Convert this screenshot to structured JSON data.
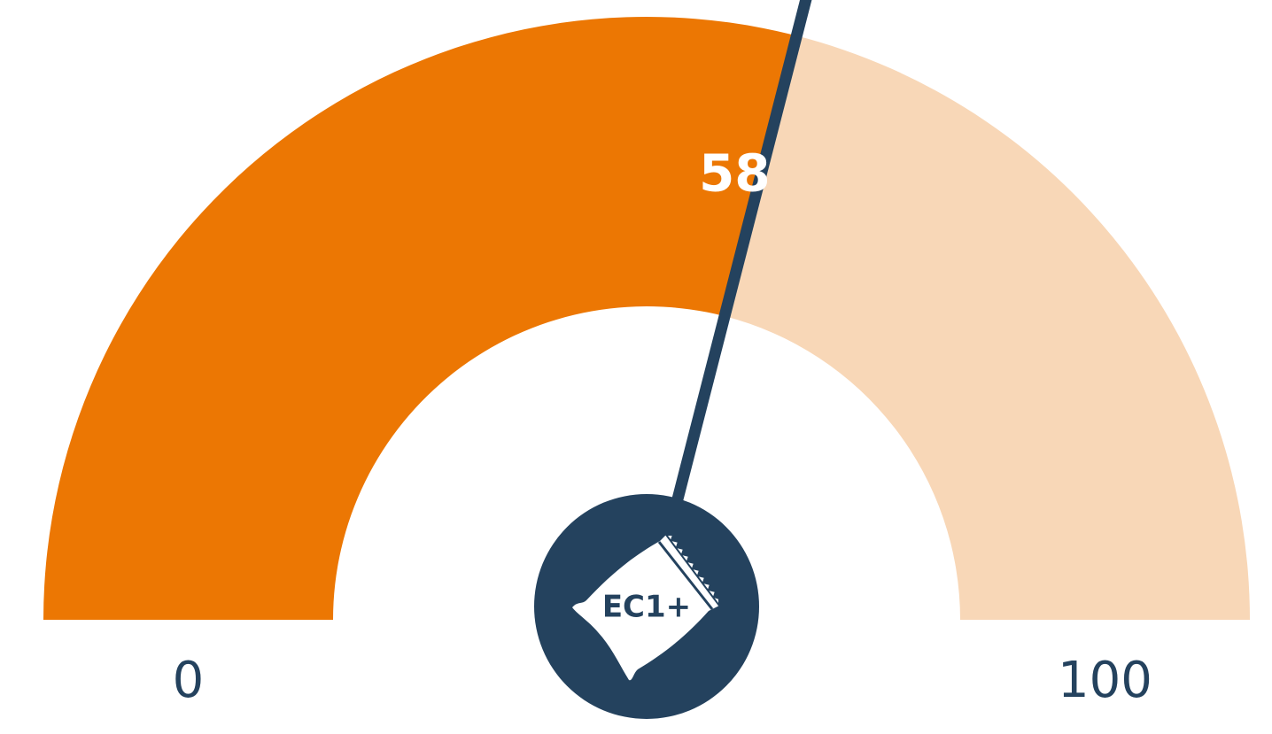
{
  "chart_data": {
    "type": "gauge",
    "value": 58,
    "ylim": [
      0,
      100
    ],
    "yticks": [
      0,
      100
    ],
    "label": "EC1+",
    "color": "#ec7703",
    "track_color": "#f8d7b7",
    "needle_color": "#24425e"
  }
}
